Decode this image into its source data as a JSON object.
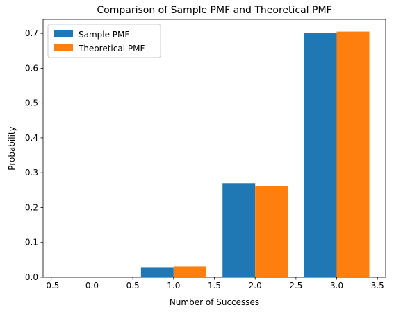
{
  "chart_data": {
    "type": "bar",
    "title": "Comparison of Sample PMF and Theoretical PMF",
    "xlabel": "Number of Successes",
    "ylabel": "Probability",
    "x": [
      0,
      1,
      2,
      3
    ],
    "xlim": [
      -0.6,
      3.6
    ],
    "ylim": [
      0,
      0.74
    ],
    "xticks": [
      "-0.5",
      "0.0",
      "0.5",
      "1.0",
      "1.5",
      "2.0",
      "2.5",
      "3.0",
      "3.5"
    ],
    "xtick_values": [
      -0.5,
      0.0,
      0.5,
      1.0,
      1.5,
      2.0,
      2.5,
      3.0,
      3.5
    ],
    "yticks": [
      "0.0",
      "0.1",
      "0.2",
      "0.3",
      "0.4",
      "0.5",
      "0.6",
      "0.7"
    ],
    "ytick_values": [
      0.0,
      0.1,
      0.2,
      0.3,
      0.4,
      0.5,
      0.6,
      0.7
    ],
    "bar_width": 0.4,
    "grid": false,
    "legend_position": "top-left",
    "series": [
      {
        "name": "Sample PMF",
        "color": "#1f77b4",
        "values": [
          0.0,
          0.029,
          0.27,
          0.701
        ],
        "offset": -0.2
      },
      {
        "name": "Theoretical PMF",
        "color": "#ff7f0e",
        "values": [
          0.001,
          0.031,
          0.262,
          0.705
        ],
        "offset": 0.2
      }
    ]
  }
}
